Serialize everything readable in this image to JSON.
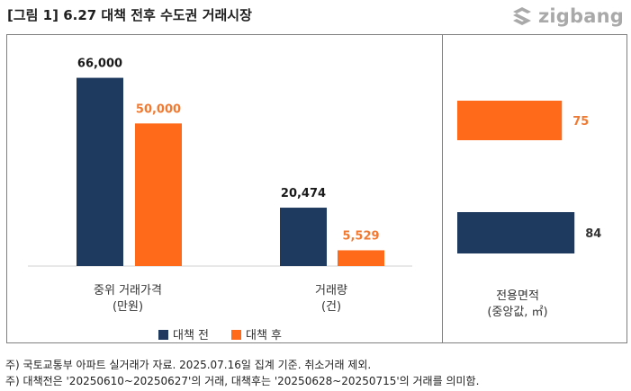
{
  "title": "[그림 1] 6.27 대책 전후 수도권 거래시장",
  "logo": {
    "text": "zigbang",
    "icon": "zigbang-logo-icon"
  },
  "colors": {
    "before": "#1f3a5f",
    "after": "#ff6a1a",
    "before_label": "#1a1a1a",
    "after_label": "#f07a32"
  },
  "chart_data": [
    {
      "type": "bar",
      "categories": [
        "중위 거래가격|(만원)"
      ],
      "series": [
        {
          "name": "대책 전",
          "values": [
            66000
          ],
          "labels": [
            "66,000"
          ]
        },
        {
          "name": "대책 후",
          "values": [
            50000
          ],
          "labels": [
            "50,000"
          ]
        }
      ],
      "ylim": [
        0,
        75000
      ],
      "legend": "bottom"
    },
    {
      "type": "bar",
      "categories": [
        "거래량|(건)"
      ],
      "series": [
        {
          "name": "대책 전",
          "values": [
            20474
          ],
          "labels": [
            "20,474"
          ]
        },
        {
          "name": "대책 후",
          "values": [
            5529
          ],
          "labels": [
            "5,529"
          ]
        }
      ],
      "ylim": [
        0,
        75000
      ],
      "legend": "bottom"
    },
    {
      "type": "bar",
      "orientation": "horizontal",
      "categories": [
        "전용면적|(중앙값, ㎡)"
      ],
      "series": [
        {
          "name": "대책 후",
          "values": [
            75
          ],
          "labels": [
            "75"
          ]
        },
        {
          "name": "대책 전",
          "values": [
            84
          ],
          "labels": [
            "84"
          ]
        }
      ],
      "xlim": [
        0,
        100
      ]
    }
  ],
  "legend": {
    "before": "대책 전",
    "after": "대책 후"
  },
  "notes": [
    "주) 국토교통부 아파트 실거래가 자료. 2025.07.16일 집계 기준. 취소거래 제외.",
    "주) 대책전은 '20250610~20250627'의 거래, 대책후는 '20250628~20250715'의 거래를 의미함."
  ]
}
